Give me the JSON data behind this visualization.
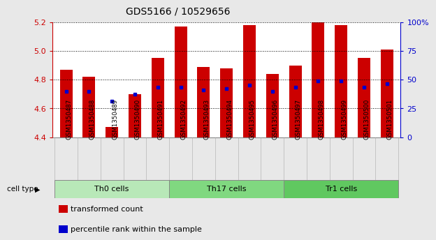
{
  "title": "GDS5166 / 10529656",
  "samples": [
    "GSM1350487",
    "GSM1350488",
    "GSM1350489",
    "GSM1350490",
    "GSM1350491",
    "GSM1350492",
    "GSM1350493",
    "GSM1350494",
    "GSM1350495",
    "GSM1350496",
    "GSM1350497",
    "GSM1350498",
    "GSM1350499",
    "GSM1350500",
    "GSM1350501"
  ],
  "transformed_count": [
    4.87,
    4.82,
    4.47,
    4.7,
    4.95,
    5.17,
    4.89,
    4.88,
    5.18,
    4.84,
    4.9,
    5.21,
    5.18,
    4.95,
    5.01
  ],
  "percentile_rank": [
    4.72,
    4.72,
    4.65,
    4.7,
    4.75,
    4.75,
    4.73,
    4.74,
    4.76,
    4.72,
    4.75,
    4.79,
    4.79,
    4.75,
    4.77
  ],
  "cell_groups": [
    {
      "label": "Th0 cells",
      "start": 0,
      "end": 5,
      "color": "#b8e8b8"
    },
    {
      "label": "Th17 cells",
      "start": 5,
      "end": 10,
      "color": "#80d880"
    },
    {
      "label": "Tr1 cells",
      "start": 10,
      "end": 15,
      "color": "#60c860"
    }
  ],
  "bar_color": "#cc0000",
  "dot_color": "#0000cc",
  "ylim_left": [
    4.4,
    5.2
  ],
  "ylim_right": [
    0,
    100
  ],
  "yticks_left": [
    4.4,
    4.6,
    4.8,
    5.0,
    5.2
  ],
  "yticks_right": [
    0,
    25,
    50,
    75,
    100
  ],
  "ytick_labels_right": [
    "0",
    "25",
    "50",
    "75",
    "100%"
  ],
  "bar_width": 0.55,
  "background_color": "#e8e8e8",
  "plot_background": "#ffffff",
  "tick_area_color": "#c8c8c8",
  "grid_color": "#000000",
  "left_axis_color": "#cc0000",
  "right_axis_color": "#0000cc"
}
